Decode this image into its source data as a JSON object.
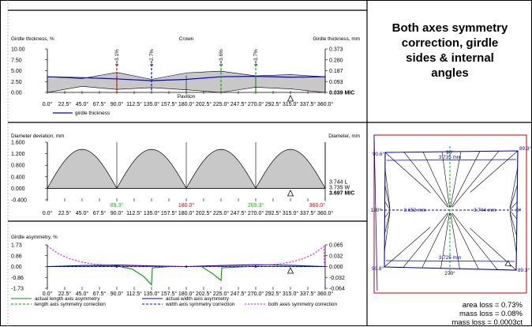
{
  "side_panel": {
    "title_lines": [
      "Both axes symmetry",
      "correction, girdle",
      "sides & internal",
      "angles"
    ],
    "losses": [
      "area loss = 0.73%",
      "mass loss = 0.08%",
      "mass loss = 0.0003ct"
    ]
  },
  "diagram": {
    "labels": {
      "top": "90°",
      "bottom": "270°",
      "left": "180°",
      "right": "0°",
      "top_left": "90.6°",
      "top_right": "89.3°",
      "bottom_left": "90.8°",
      "bottom_right": "89.3°",
      "top_width": "3.735 mm",
      "bottom_width": "3.725 mm",
      "left_length": "3.652 mm",
      "right_length": "3.744 mm"
    },
    "colors": {
      "outline": "#0000cc",
      "frame_red": "#cc0000",
      "axis_green": "#00aa00"
    }
  },
  "chart_data": [
    {
      "type": "area",
      "ylabel_left": "Girdle thickness, %",
      "ylabel_right": "Girdle thickness, mm",
      "top_label": "Crown",
      "bottom_label": "Pavilion",
      "ylim": [
        0,
        10
      ],
      "y_ticks": [
        "10.00",
        "7.50",
        "5.00",
        "2.50",
        "0.00"
      ],
      "y_ticks_right": [
        "0.373",
        "0.280",
        "0.187",
        "0.093",
        "0.039 MIC"
      ],
      "x_ticks": [
        "0.0°",
        "22.5°",
        "45.0°",
        "67.5°",
        "90.0°",
        "112.5°",
        "135.0°",
        "157.5°",
        "180.0°",
        "202.5°",
        "225.0°",
        "247.5°",
        "270.0°",
        "292.5°",
        "315.0°",
        "337.5°",
        "360.0°"
      ],
      "x_range": [
        0,
        360
      ],
      "annotations": [
        {
          "text": "s=3.1%",
          "x": 90
        },
        {
          "text": "c=2.7%",
          "x": 135
        },
        {
          "text": "c=3.6%",
          "x": 225
        },
        {
          "text": "s=3.7%",
          "x": 270
        }
      ],
      "marker_x": 315,
      "series": [
        {
          "name": "girdle thickness",
          "x": [
            0,
            45,
            90,
            135,
            180,
            225,
            270,
            315,
            360
          ],
          "values": [
            3.6,
            3.4,
            3.1,
            2.7,
            3.0,
            3.6,
            3.7,
            3.5,
            3.6
          ]
        }
      ],
      "crown_envelope": {
        "x": [
          0,
          45,
          90,
          135,
          180,
          225,
          270,
          315,
          360
        ],
        "values": [
          3.6,
          3.2,
          4.6,
          3.0,
          4.5,
          4.9,
          3.8,
          4.1,
          3.6
        ]
      },
      "pavilion_envelope": {
        "x": [
          0,
          45,
          90,
          135,
          180,
          225,
          270,
          315,
          360
        ],
        "values": [
          0.0,
          1.4,
          0.7,
          1.1,
          0.6,
          0.0,
          1.2,
          0.8,
          0.0
        ]
      }
    },
    {
      "type": "area",
      "ylabel_left": "Diameter deviation, mm",
      "ylabel_right": "Diameter, mm",
      "ylim": [
        -0.4,
        1.6
      ],
      "y_ticks": [
        "1.600",
        "1.200",
        "0.800",
        "0.400",
        "0.000",
        "-0.400"
      ],
      "right_values": [
        "3.744 L",
        "3.735 W",
        "3.697 MIC"
      ],
      "angle_labels": [
        {
          "text": "89.3°",
          "x": 90,
          "color": "#00cc00"
        },
        {
          "text": "180.0°",
          "x": 180,
          "color": "#dd0000"
        },
        {
          "text": "269.3°",
          "x": 270,
          "color": "#00cc00"
        },
        {
          "text": "360.0°",
          "x": 360,
          "color": "#dd0000"
        }
      ],
      "x_ticks": [
        "0.0°",
        "22.5°",
        "45.0°",
        "67.5°",
        "90.0°",
        "112.5°",
        "135.0°",
        "157.5°",
        "180.0°",
        "202.5°",
        "225.0°",
        "247.5°",
        "270.0°",
        "292.5°",
        "315.0°",
        "337.5°",
        "360.0°"
      ],
      "x_range": [
        0,
        360
      ],
      "marker_x": 315,
      "hump_peak": 1.35,
      "hump_periods": 4
    },
    {
      "type": "line",
      "ylabel_left": "Girdle asymmetry, %",
      "ylim": [
        -1.73,
        1.73
      ],
      "y_ticks": [
        "1.73",
        "0.86",
        "0.00",
        "-0.86",
        "-1.73"
      ],
      "y_ticks_right": [
        "0.065",
        "0.032",
        "0.000",
        "-0.032",
        "-0.064"
      ],
      "x_ticks": [
        "0.0°",
        "22.5°",
        "45.0°",
        "67.5°",
        "90.0°",
        "112.5°",
        "135.0°",
        "157.5°",
        "180.0°",
        "202.5°",
        "225.0°",
        "247.5°",
        "270.0°",
        "292.5°",
        "315.0°",
        "337.5°",
        "360.0°"
      ],
      "x_range": [
        0,
        360
      ],
      "marker_x": 315,
      "series": [
        {
          "name": "actual length axis asymmetry",
          "color": "#009900",
          "dash": "",
          "x": [
            0,
            45,
            90,
            110,
            125,
            135,
            136,
            160,
            180,
            200,
            215,
            225,
            226,
            260,
            290,
            315,
            360
          ],
          "values": [
            0,
            0,
            0.05,
            -0.2,
            -0.8,
            -1.45,
            -0.1,
            0.0,
            0.0,
            0.0,
            -0.6,
            -1.1,
            -0.1,
            0.0,
            0.0,
            0.0,
            0.0
          ]
        },
        {
          "name": "actual width axis asymmetry",
          "color": "#0000cc",
          "dash": "",
          "x": [
            0,
            45,
            90,
            135,
            180,
            225,
            270,
            315,
            360
          ],
          "values": [
            0.0,
            0.08,
            0.12,
            0.05,
            0.0,
            0.08,
            0.15,
            0.1,
            0.0
          ]
        },
        {
          "name": "length axis symmetry correction",
          "color": "#009900",
          "dash": "3,2",
          "x": [
            0,
            90,
            180,
            270,
            360
          ],
          "values": [
            0.0,
            0.0,
            0.0,
            0.0,
            0.0
          ]
        },
        {
          "name": "width axis symmetry correction",
          "color": "#0000cc",
          "dash": "3,2",
          "x": [
            0,
            90,
            180,
            270,
            360
          ],
          "values": [
            0.0,
            0.0,
            0.0,
            0.0,
            0.0
          ]
        },
        {
          "name": "both axes symmetry correction",
          "color": "#ee00ee",
          "dash": "2,2",
          "x": [
            0,
            15,
            30,
            45,
            60,
            80,
            100,
            120,
            150,
            180,
            210,
            240,
            260,
            280,
            300,
            315,
            330,
            345,
            358,
            359,
            360
          ],
          "values": [
            1.65,
            1.0,
            0.6,
            0.35,
            0.2,
            0.1,
            0.05,
            0.02,
            0.0,
            0.0,
            0.0,
            0.02,
            0.05,
            0.1,
            0.2,
            0.35,
            0.6,
            1.0,
            1.6,
            0.2,
            0.0
          ]
        }
      ]
    }
  ]
}
